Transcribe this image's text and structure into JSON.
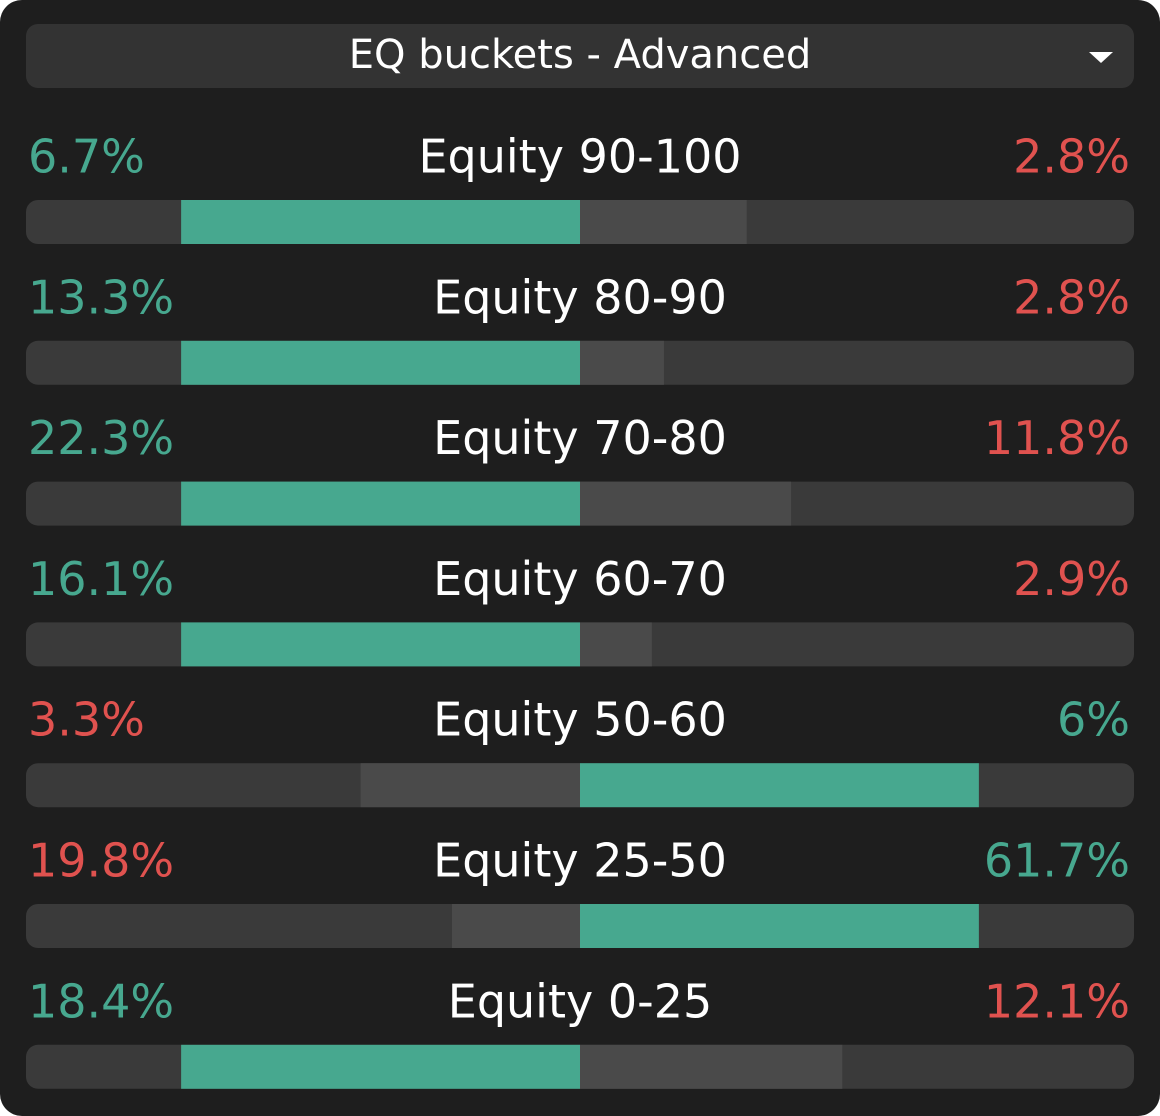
{
  "header": {
    "title": "EQ buckets - Advanced"
  },
  "colors": {
    "positive": "#47a88f",
    "negative": "#e0524f"
  },
  "rows": [
    {
      "label": "Equity 90-100",
      "left": {
        "value": 6.7,
        "label": "6.7%"
      },
      "right": {
        "value": 2.8,
        "label": "2.8%"
      }
    },
    {
      "label": "Equity 80-90",
      "left": {
        "value": 13.3,
        "label": "13.3%"
      },
      "right": {
        "value": 2.8,
        "label": "2.8%"
      }
    },
    {
      "label": "Equity 70-80",
      "left": {
        "value": 22.3,
        "label": "22.3%"
      },
      "right": {
        "value": 11.8,
        "label": "11.8%"
      }
    },
    {
      "label": "Equity 60-70",
      "left": {
        "value": 16.1,
        "label": "16.1%"
      },
      "right": {
        "value": 2.9,
        "label": "2.9%"
      }
    },
    {
      "label": "Equity 50-60",
      "left": {
        "value": 3.3,
        "label": "3.3%"
      },
      "right": {
        "value": 6,
        "label": "6%"
      }
    },
    {
      "label": "Equity 25-50",
      "left": {
        "value": 19.8,
        "label": "19.8%"
      },
      "right": {
        "value": 61.7,
        "label": "61.7%"
      }
    },
    {
      "label": "Equity 0-25",
      "left": {
        "value": 18.4,
        "label": "18.4%"
      },
      "right": {
        "value": 12.1,
        "label": "12.1%"
      }
    }
  ]
}
